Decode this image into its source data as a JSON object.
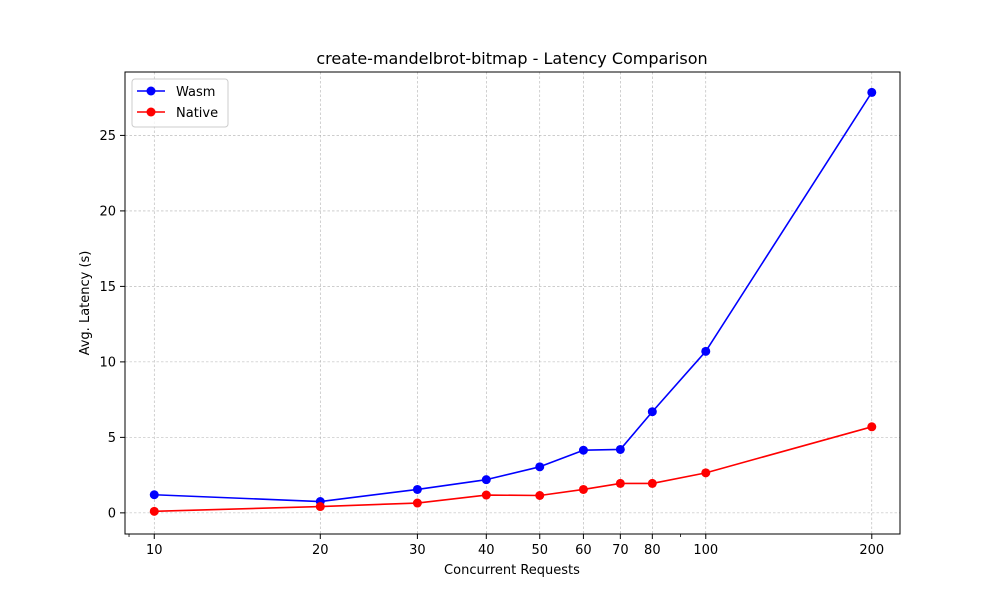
{
  "chart_data": {
    "type": "line",
    "title": "create-mandelbrot-bitmap - Latency Comparison",
    "xlabel": "Concurrent Requests",
    "ylabel": "Avg. Latency (s)",
    "xscale": "log",
    "x": [
      10,
      20,
      30,
      40,
      50,
      60,
      70,
      80,
      100,
      200
    ],
    "x_tick_labels": [
      "10",
      "20",
      "30",
      "40",
      "50",
      "60",
      "70",
      "80",
      "100",
      "200"
    ],
    "xlim": [
      8.85,
      225
    ],
    "ylim": [
      -1.4,
      29.2
    ],
    "y_ticks": [
      0,
      5,
      10,
      15,
      20,
      25
    ],
    "y_tick_labels": [
      "0",
      "5",
      "10",
      "15",
      "20",
      "25"
    ],
    "grid": true,
    "legend_position": "top-left",
    "series": [
      {
        "name": "Wasm",
        "color": "#0000ff",
        "values": [
          1.2,
          0.75,
          1.55,
          2.2,
          3.05,
          4.15,
          4.2,
          6.7,
          10.7,
          27.85
        ]
      },
      {
        "name": "Native",
        "color": "#ff0000",
        "values": [
          0.1,
          0.42,
          0.65,
          1.18,
          1.15,
          1.55,
          1.95,
          1.95,
          2.65,
          5.7
        ]
      }
    ]
  }
}
